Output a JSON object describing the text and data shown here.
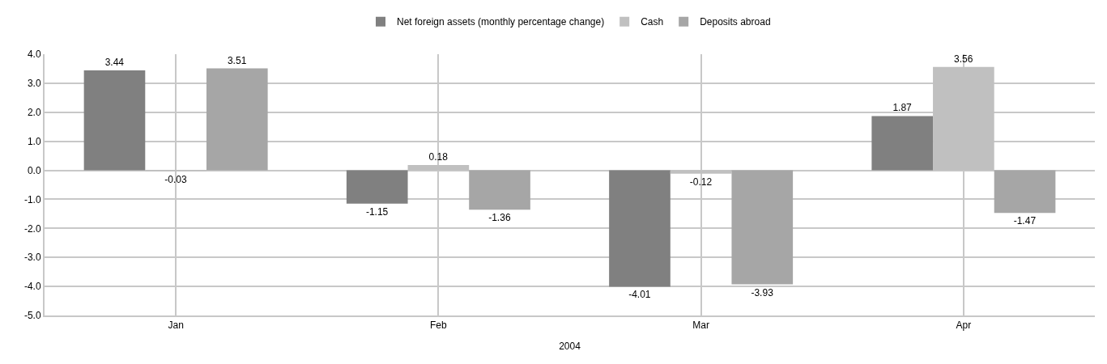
{
  "chart_data": {
    "type": "bar",
    "xlabel": "2004",
    "categories": [
      "Jan",
      "Feb",
      "Mar",
      "Apr"
    ],
    "series": [
      {
        "name": "Net foreign assets (monthly percentage change)",
        "color": "#808080",
        "values": [
          3.44,
          -1.15,
          -4.01,
          1.87
        ]
      },
      {
        "name": "Cash",
        "color": "#c0c0c0",
        "values": [
          -0.03,
          0.18,
          -0.12,
          3.56
        ]
      },
      {
        "name": "Deposits abroad",
        "color": "#a6a6a6",
        "values": [
          3.51,
          -1.36,
          -3.93,
          -1.47
        ]
      }
    ],
    "ylim": [
      -5,
      4
    ],
    "yticks": [
      {
        "value": -5,
        "label": "-5.0"
      },
      {
        "value": -4,
        "label": "-4.0"
      },
      {
        "value": -3,
        "label": "-3.0"
      },
      {
        "value": -2,
        "label": "-2.0"
      },
      {
        "value": -1,
        "label": "-1.0"
      },
      {
        "value": 0,
        "label": "0.0"
      },
      {
        "value": 1,
        "label": "1.0"
      },
      {
        "value": 2,
        "label": "2.0"
      },
      {
        "value": 3,
        "label": "3.0"
      },
      {
        "value": 4,
        "label": "4.0"
      }
    ],
    "data_labels": true,
    "grid": true,
    "legend": "top"
  }
}
